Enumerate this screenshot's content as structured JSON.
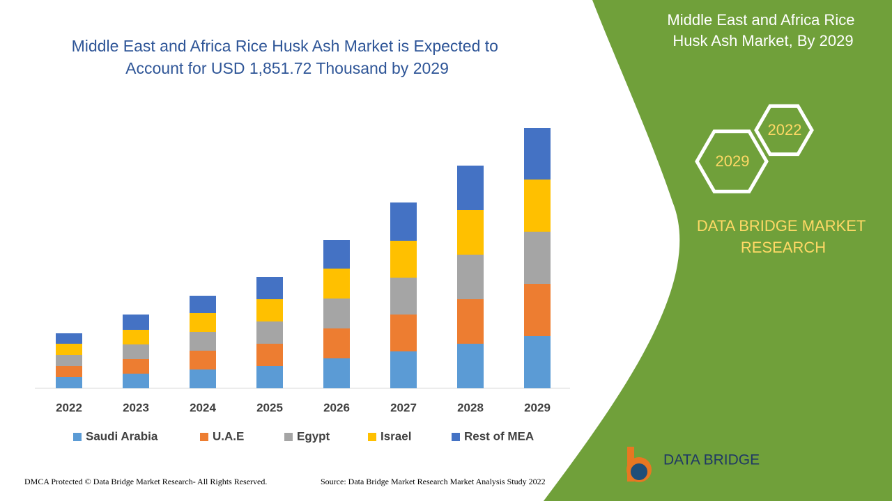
{
  "chart_data": {
    "type": "bar",
    "stacked": true,
    "title": "Middle East and Africa Rice Husk Ash Market is Expected to Account for USD 1,851.72 Thousand by 2029",
    "categories": [
      "2022",
      "2023",
      "2024",
      "2025",
      "2026",
      "2027",
      "2028",
      "2029"
    ],
    "series": [
      {
        "name": "Saudi Arabia",
        "color": "#5b9bd5",
        "values": [
          16,
          21,
          27,
          32,
          43,
          53,
          64,
          75
        ]
      },
      {
        "name": "U.A.E",
        "color": "#ed7d31",
        "values": [
          16,
          21,
          27,
          32,
          43,
          53,
          64,
          75
        ]
      },
      {
        "name": "Egypt",
        "color": "#a5a5a5",
        "values": [
          16,
          21,
          27,
          32,
          43,
          53,
          64,
          75
        ]
      },
      {
        "name": "Israel",
        "color": "#ffc000",
        "values": [
          16,
          21,
          27,
          32,
          43,
          53,
          64,
          75
        ]
      },
      {
        "name": "Rest of MEA",
        "color": "#4472c4",
        "values": [
          15,
          22,
          25,
          32,
          41,
          55,
          64,
          74
        ]
      }
    ]
  },
  "side_panel": {
    "title": "Middle East and Africa Rice Husk Ash Market, By 2029",
    "badges": [
      "2022",
      "2029"
    ],
    "brand": "DATA BRIDGE MARKET RESEARCH"
  },
  "logo": {
    "text": "DATA BRIDGE"
  },
  "footer": {
    "left": "DMCA Protected © Data Bridge Market Research- All Rights Reserved.",
    "right": "Source: Data Bridge Market Research Market Analysis Study 2022"
  }
}
